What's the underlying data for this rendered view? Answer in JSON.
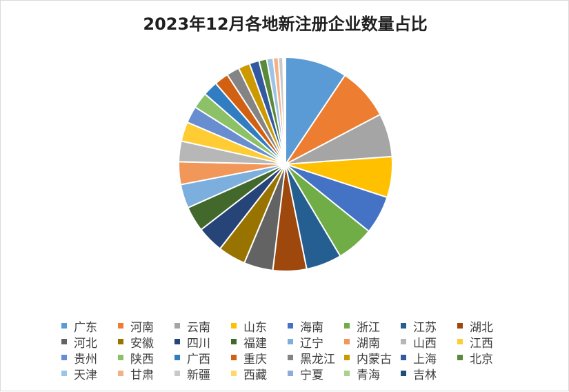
{
  "chart_data": {
    "type": "pie",
    "title": "2023年12月各地新注册企业数量占比",
    "legend_position": "bottom",
    "start_angle_deg": 0,
    "direction": "clockwise",
    "slices": [
      {
        "name": "广东",
        "value": 9.6,
        "color": "#5B9BD5"
      },
      {
        "name": "河南",
        "value": 8.1,
        "color": "#ED7D31"
      },
      {
        "name": "云南",
        "value": 6.7,
        "color": "#A5A5A5"
      },
      {
        "name": "山东",
        "value": 6.3,
        "color": "#FFC000"
      },
      {
        "name": "海南",
        "value": 5.9,
        "color": "#4472C4"
      },
      {
        "name": "浙江",
        "value": 5.8,
        "color": "#70AD47"
      },
      {
        "name": "江苏",
        "value": 5.5,
        "color": "#255E91"
      },
      {
        "name": "湖北",
        "value": 5.2,
        "color": "#9E480E"
      },
      {
        "name": "河北",
        "value": 4.5,
        "color": "#636363"
      },
      {
        "name": "安徽",
        "value": 4.3,
        "color": "#997300"
      },
      {
        "name": "四川",
        "value": 4.1,
        "color": "#264478"
      },
      {
        "name": "福建",
        "value": 3.9,
        "color": "#43682B"
      },
      {
        "name": "辽宁",
        "value": 3.7,
        "color": "#7CAFDD"
      },
      {
        "name": "湖南",
        "value": 3.5,
        "color": "#F1975A"
      },
      {
        "name": "山西",
        "value": 3.2,
        "color": "#B7B7B7"
      },
      {
        "name": "江西",
        "value": 3.0,
        "color": "#FFCD33"
      },
      {
        "name": "贵州",
        "value": 2.6,
        "color": "#698ED0"
      },
      {
        "name": "陕西",
        "value": 2.5,
        "color": "#8CC168"
      },
      {
        "name": "广西",
        "value": 2.3,
        "color": "#327DC2"
      },
      {
        "name": "重庆",
        "value": 2.2,
        "color": "#D26012"
      },
      {
        "name": "黑龙江",
        "value": 2.0,
        "color": "#848484"
      },
      {
        "name": "内蒙古",
        "value": 1.8,
        "color": "#CC9A00"
      },
      {
        "name": "上海",
        "value": 1.5,
        "color": "#335AA1"
      },
      {
        "name": "北京",
        "value": 1.2,
        "color": "#5A8A39"
      },
      {
        "name": "天津",
        "value": 1.0,
        "color": "#9DC3E6"
      },
      {
        "name": "甘肃",
        "value": 0.8,
        "color": "#F4B183"
      },
      {
        "name": "新疆",
        "value": 0.7,
        "color": "#C9C9C9"
      },
      {
        "name": "西藏",
        "value": 0.1,
        "color": "#FFD966"
      },
      {
        "name": "宁夏",
        "value": 0.1,
        "color": "#8FAADC"
      },
      {
        "name": "青海",
        "value": 0.1,
        "color": "#A9D18E"
      },
      {
        "name": "吉林",
        "value": 0.1,
        "color": "#1F4E79"
      }
    ]
  }
}
